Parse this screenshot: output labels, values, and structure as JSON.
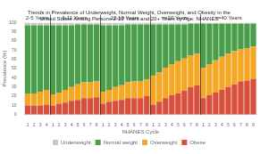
{
  "chart_data": {
    "type": "bar",
    "title": "Trends in Prevalence of Underweight, Normal Weight, Overweight, and Obesity in the\nUnited States Among Persons 2-19 Years and 20+ Years by Age: NHANES",
    "x_label": "NHANES Cycle",
    "y_label": "Prevalence (%)",
    "annotations": [
      "2-5 Years",
      "6-11 Years",
      "12-19 Years",
      ">=20 Years",
      ">=40 Years"
    ],
    "categories": [
      "1",
      "2",
      "3",
      "4",
      "1",
      "2",
      "3",
      "4",
      "5",
      "6",
      "7",
      "8",
      "1",
      "2",
      "3",
      "4",
      "5",
      "6",
      "7",
      "8",
      "1",
      "2",
      "3",
      "4",
      "5",
      "6",
      "7",
      "8",
      "1",
      "2",
      "3",
      "4",
      "5",
      "6",
      "7",
      "8",
      "9"
    ],
    "series": [
      {
        "name": "Obese",
        "color": "#d94f3d",
        "values": [
          10,
          10,
          10,
          11,
          10,
          12,
          13,
          15,
          16,
          18,
          18,
          19,
          12,
          14,
          15,
          16,
          18,
          18,
          18,
          20,
          11,
          14,
          18,
          21,
          23,
          26,
          30,
          32,
          18,
          21,
          24,
          27,
          30,
          33,
          36,
          37,
          39
        ]
      },
      {
        "name": "Overweight",
        "color": "#f5a623",
        "values": [
          13,
          13,
          15,
          16,
          12,
          12,
          14,
          15,
          17,
          17,
          17,
          17,
          13,
          13,
          15,
          16,
          17,
          18,
          18,
          18,
          31,
          32,
          33,
          34,
          35,
          35,
          34,
          34,
          33,
          34,
          35,
          36,
          36,
          36,
          35,
          35,
          35
        ]
      },
      {
        "name": "Normal weight",
        "color": "#4a9e4a",
        "values": [
          74,
          74,
          72,
          70,
          75,
          73,
          70,
          67,
          65,
          63,
          63,
          62,
          72,
          70,
          67,
          65,
          63,
          62,
          62,
          60,
          56,
          52,
          47,
          43,
          40,
          37,
          35,
          33,
          48,
          44,
          40,
          36,
          33,
          30,
          28,
          27,
          25
        ]
      },
      {
        "name": "Underweight",
        "color": "#c8c8c8",
        "values": [
          3,
          3,
          3,
          3,
          3,
          3,
          3,
          3,
          2,
          2,
          2,
          2,
          3,
          3,
          3,
          3,
          2,
          2,
          2,
          2,
          2,
          2,
          2,
          2,
          2,
          2,
          1,
          1,
          1,
          1,
          1,
          1,
          1,
          1,
          1,
          1,
          1
        ]
      }
    ],
    "stacked": true,
    "ylim": [
      0,
      100
    ],
    "yticks": [
      0,
      10,
      20,
      30,
      40,
      50,
      60,
      70,
      80,
      90,
      100
    ],
    "grid": false,
    "legend": "bottom"
  }
}
